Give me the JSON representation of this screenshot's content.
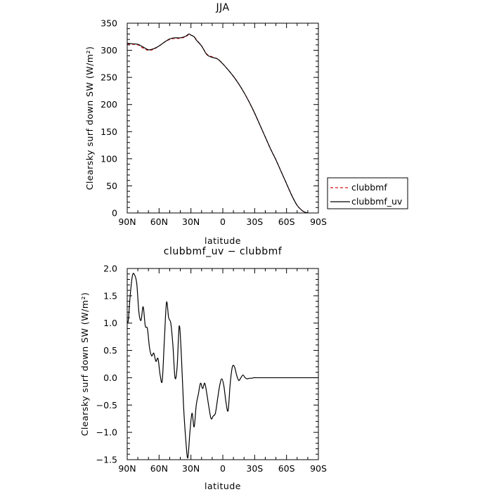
{
  "chart_data": [
    {
      "type": "line",
      "title": "JJA",
      "xlabel": "latitude",
      "ylabel": "Clearsky surf down SW (W/m²)",
      "xlim": [
        90,
        -90
      ],
      "ylim": [
        0,
        350
      ],
      "x_ticks": [
        {
          "value": 90,
          "label": "90N"
        },
        {
          "value": 60,
          "label": "60N"
        },
        {
          "value": 30,
          "label": "30N"
        },
        {
          "value": 0,
          "label": "0"
        },
        {
          "value": -30,
          "label": "30S"
        },
        {
          "value": -60,
          "label": "60S"
        },
        {
          "value": -90,
          "label": "90S"
        }
      ],
      "y_ticks": [
        0,
        50,
        100,
        150,
        200,
        250,
        300,
        350
      ],
      "legend_position": "right, outside",
      "series": [
        {
          "name": "clubbmf",
          "color": "#dd1111",
          "dash": "dashed",
          "x": [
            90,
            85,
            80,
            75,
            70,
            65,
            60,
            55,
            50,
            45,
            40,
            35,
            32,
            30,
            27,
            25,
            20,
            15,
            10,
            5,
            0,
            -5,
            -10,
            -15,
            -20,
            -25,
            -30,
            -35,
            -40,
            -45,
            -50,
            -55,
            -60,
            -65,
            -70,
            -75,
            -78,
            -80
          ],
          "y": [
            312,
            311,
            310,
            304,
            300,
            302,
            308,
            315,
            320,
            322,
            322,
            325,
            329,
            328,
            325,
            320,
            308,
            293,
            288,
            284,
            275,
            264,
            252,
            238,
            222,
            204,
            184,
            162,
            140,
            118,
            98,
            76,
            54,
            32,
            14,
            4,
            1,
            0
          ]
        },
        {
          "name": "clubbmf_uv",
          "color": "#000000",
          "dash": "solid",
          "x": [
            90,
            85,
            80,
            75,
            70,
            65,
            60,
            55,
            50,
            45,
            40,
            35,
            32,
            30,
            27,
            25,
            20,
            15,
            10,
            5,
            0,
            -5,
            -10,
            -15,
            -20,
            -25,
            -30,
            -35,
            -40,
            -45,
            -50,
            -55,
            -60,
            -65,
            -70,
            -75,
            -78,
            -80
          ],
          "y": [
            313,
            312,
            311,
            306,
            301,
            303,
            308,
            315,
            321,
            323,
            323,
            326,
            330,
            328,
            325,
            319,
            308,
            292,
            287,
            284,
            275,
            264,
            252,
            238,
            222,
            204,
            184,
            162,
            140,
            118,
            98,
            76,
            54,
            32,
            14,
            4,
            1,
            0
          ]
        }
      ]
    },
    {
      "type": "line",
      "title": "clubbmf_uv − clubbmf",
      "xlabel": "latitude",
      "ylabel": "Clearsky surf down SW (W/m²)",
      "xlim": [
        90,
        -90
      ],
      "ylim": [
        -1.5,
        2.0
      ],
      "x_ticks": [
        {
          "value": 90,
          "label": "90N"
        },
        {
          "value": 60,
          "label": "60N"
        },
        {
          "value": 30,
          "label": "30N"
        },
        {
          "value": 0,
          "label": "0"
        },
        {
          "value": -30,
          "label": "30S"
        },
        {
          "value": -60,
          "label": "60S"
        },
        {
          "value": -90,
          "label": "90S"
        }
      ],
      "y_ticks": [
        "2.0",
        "1.5",
        "1.0",
        "0.5",
        "0.0",
        "−0.5",
        "−1.0",
        "−1.5"
      ],
      "series": [
        {
          "color": "#000000",
          "dash": "solid",
          "x": [
            90,
            89,
            87,
            85,
            83,
            81,
            79,
            77,
            75,
            73,
            71,
            69,
            67,
            65,
            63,
            61,
            59,
            57,
            55,
            53,
            51,
            49,
            47,
            45,
            43,
            41,
            39,
            37,
            35,
            33,
            31,
            29,
            27,
            25,
            23,
            21,
            19,
            17,
            15,
            13,
            11,
            9,
            7,
            5,
            3,
            1,
            -1,
            -3,
            -5,
            -7,
            -9,
            -11,
            -13,
            -15,
            -17,
            -19,
            -21,
            -23,
            -25,
            -27,
            -29,
            -31,
            -33,
            -35,
            -37,
            -39,
            -41,
            -43,
            -45,
            -47,
            -49,
            -51,
            -53,
            -55,
            -57,
            -59,
            -61,
            -63,
            -65,
            -67,
            -69,
            -71,
            -75,
            -80,
            -85,
            -90
          ],
          "y": [
            1.02,
            1.05,
            1.55,
            1.88,
            1.88,
            1.72,
            1.2,
            1.05,
            1.3,
            0.95,
            0.9,
            0.55,
            0.4,
            0.45,
            0.3,
            0.35,
            0.05,
            -0.05,
            0.7,
            1.38,
            1.1,
            1.0,
            0.6,
            0.0,
            0.2,
            0.95,
            0.4,
            -0.5,
            -1.1,
            -1.47,
            -1.0,
            -0.65,
            -0.9,
            -0.5,
            -0.3,
            -0.1,
            -0.2,
            -0.1,
            -0.3,
            -0.55,
            -0.75,
            -0.7,
            -0.65,
            -0.4,
            -0.15,
            -0.02,
            -0.15,
            -0.45,
            -0.6,
            -0.1,
            0.2,
            0.2,
            0.05,
            -0.05,
            0.0,
            0.05,
            0.0,
            -0.02,
            -0.01,
            -0.01,
            0.0,
            0.0,
            0.0,
            0.0,
            0.0,
            0.0,
            0.0,
            0.0,
            0.0,
            0.0,
            0.0,
            0.0,
            0.0,
            0.0,
            0.0,
            0.0,
            0.0,
            0.0,
            0.0,
            0.0,
            0.0,
            0.0,
            0.0,
            0.0,
            0.0,
            0.0
          ]
        }
      ]
    }
  ]
}
